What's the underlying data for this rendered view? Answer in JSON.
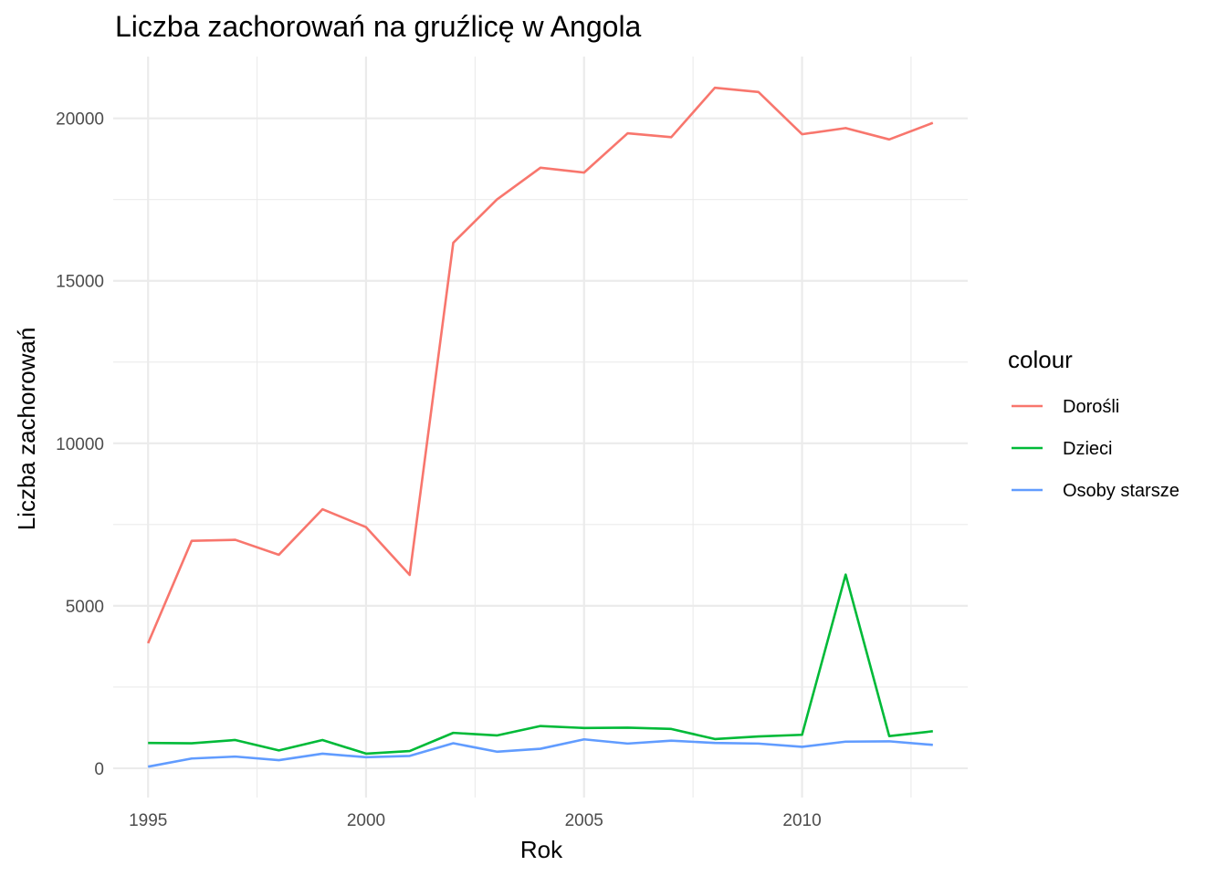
{
  "chart_data": {
    "type": "line",
    "title": "Liczba zachorowań na gruźlicę w Angola",
    "xlabel": "Rok",
    "ylabel": "Liczba zachorowań",
    "xlim": [
      1994.2,
      2013.8
    ],
    "ylim": [
      -900,
      21900
    ],
    "x_ticks": [
      1995,
      2000,
      2005,
      2010
    ],
    "x_minor": [
      1997.5,
      2002.5,
      2007.5,
      2012.5
    ],
    "y_ticks": [
      0,
      5000,
      10000,
      15000,
      20000
    ],
    "y_minor": [
      2500,
      7500,
      12500,
      17500
    ],
    "grid": true,
    "legend": {
      "title": "colour",
      "position": "right"
    },
    "x": [
      1995,
      1996,
      1997,
      1998,
      1999,
      2000,
      2001,
      2002,
      2003,
      2004,
      2005,
      2006,
      2007,
      2008,
      2009,
      2010,
      2011,
      2012,
      2013
    ],
    "series": [
      {
        "name": "Dorośli",
        "color": "#F8766D",
        "values": [
          3850,
          7000,
          7030,
          6570,
          7970,
          7420,
          5950,
          16170,
          17500,
          18480,
          18330,
          19540,
          19420,
          20940,
          20810,
          19510,
          19700,
          19350,
          19860
        ]
      },
      {
        "name": "Dzieci",
        "color": "#00BA38",
        "values": [
          780,
          770,
          870,
          550,
          870,
          450,
          530,
          1090,
          1010,
          1300,
          1240,
          1250,
          1210,
          900,
          980,
          1030,
          5960,
          990,
          1140
        ]
      },
      {
        "name": "Osoby starsze",
        "color": "#619CFF",
        "values": [
          50,
          300,
          360,
          250,
          450,
          340,
          380,
          770,
          510,
          600,
          890,
          760,
          850,
          780,
          760,
          660,
          820,
          830,
          720
        ]
      }
    ]
  }
}
